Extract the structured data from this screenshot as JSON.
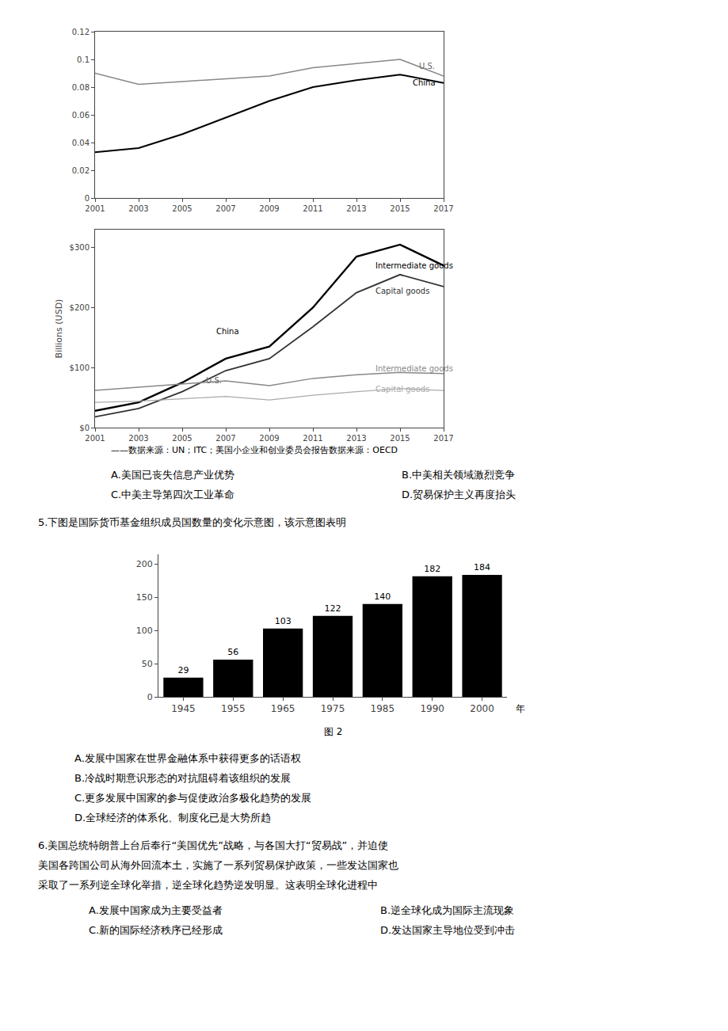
{
  "chart_data": [
    {
      "type": "line",
      "x": [
        2001,
        2003,
        2005,
        2007,
        2009,
        2011,
        2013,
        2015,
        2017
      ],
      "series": [
        {
          "color": "#888888",
          "values": [
            0.09,
            0.082,
            0.084,
            0.086,
            0.088,
            0.094,
            0.097,
            0.1,
            0.088
          ]
        },
        {
          "color": "black",
          "values": [
            0.033,
            0.036,
            0.046,
            0.058,
            0.07,
            0.08,
            0.085,
            0.089,
            0.083
          ]
        }
      ],
      "xlim": [
        2001,
        2017
      ],
      "xticks": [
        2001,
        2003,
        2005,
        2007,
        2009,
        2011,
        2013,
        2015,
        2017
      ],
      "ylim": [
        0,
        0.12
      ],
      "yticks": [
        0,
        0.02,
        0.04,
        0.06,
        0.08,
        0.1,
        0.12
      ],
      "grid": false,
      "annotations": [
        {
          "text": "U.S.",
          "x": 2015.8,
          "y": 0.091,
          "color": "#666666"
        },
        {
          "text": "China",
          "x": 2015.5,
          "y": 0.079,
          "color": "black"
        }
      ]
    },
    {
      "type": "line",
      "x": [
        2001,
        2003,
        2005,
        2007,
        2009,
        2011,
        2013,
        2015,
        2017
      ],
      "series": [
        {
          "color": "black",
          "values": [
            28,
            42,
            75,
            115,
            135,
            200,
            285,
            305,
            270
          ]
        },
        {
          "color": "#333333",
          "values": [
            18,
            32,
            60,
            95,
            115,
            168,
            225,
            255,
            235
          ]
        },
        {
          "color": "#888888",
          "values": [
            62,
            67,
            72,
            78,
            70,
            82,
            88,
            92,
            90
          ]
        },
        {
          "color": "#aaaaaa",
          "values": [
            42,
            44,
            48,
            52,
            46,
            54,
            60,
            65,
            62
          ]
        }
      ],
      "xlim": [
        2001,
        2017
      ],
      "xticks": [
        2001,
        2003,
        2005,
        2007,
        2009,
        2011,
        2013,
        2015,
        2017
      ],
      "ylim": [
        0,
        330
      ],
      "yticks": [
        {
          "value": 0,
          "label": "$0"
        },
        {
          "value": 100,
          "label": "$100"
        },
        {
          "value": 200,
          "label": "$200"
        },
        {
          "value": 300,
          "label": "$300"
        }
      ],
      "ylabel": "Billions (USD)",
      "grid": false,
      "annotations": [
        {
          "text": "China",
          "x": 2006.5,
          "y": 150,
          "color": "black"
        },
        {
          "text": "U.S.",
          "x": 2006,
          "y": 68,
          "color": "#666666"
        },
        {
          "text": "Intermediate goods",
          "x": 2013.8,
          "y": 260,
          "color": "black"
        },
        {
          "text": "Capital goods",
          "x": 2013.8,
          "y": 218,
          "color": "#333333"
        },
        {
          "text": "Intermediate goods",
          "x": 2013.8,
          "y": 88,
          "color": "#888888"
        },
        {
          "text": "Capital goods",
          "x": 2013.8,
          "y": 54,
          "color": "#aaaaaa"
        }
      ]
    },
    {
      "type": "bar",
      "categories": [
        "1945",
        "1955",
        "1965",
        "1975",
        "1985",
        "1990",
        "2000"
      ],
      "values": [
        29,
        56,
        103,
        122,
        140,
        182,
        184
      ],
      "color": "black",
      "data_labels": true,
      "xlabel": "年",
      "ylim": [
        0,
        215
      ],
      "yticks": [
        0,
        50,
        100,
        150,
        200
      ],
      "grid": false
    }
  ],
  "annotations": [
    "——数据来源：UN；ITC；美国小企业和创业委员会报告数据来源：OECD",
    "A.美国已丧失信息产业优势",
    "B.中美相关领域激烈竞争",
    "C.中美主导第四次工业革命",
    "D.贸易保护主义再度抬头",
    "5.下图是国际货币基金组织成员国数量的变化示意图，该示意图表明",
    "图 2",
    "A.发展中国家在世界金融体系中获得更多的话语权",
    "B.冷战时期意识形态的对抗阻碍着该组织的发展",
    "C.更多发展中国家的参与促使政治多极化趋势的发展",
    "D.全球经济的体系化、制度化已是大势所趋",
    "6.美国总统特朗普上台后奉行“美国优先”战略，与各国大打“贸易战”，并迫使",
    "美国各跨国公司从海外回流本土，实施了一系列贸易保护政策，一些发达国家也",
    "采取了一系列逆全球化举措，逆全球化趋势逆发明显。这表明全球化进程中",
    "A.发展中国家成为主要受益者",
    "B.逆全球化成为国际主流现象",
    "C.新的国际经济秩序已经形成",
    "D.发达国家主导地位受到冲击"
  ]
}
